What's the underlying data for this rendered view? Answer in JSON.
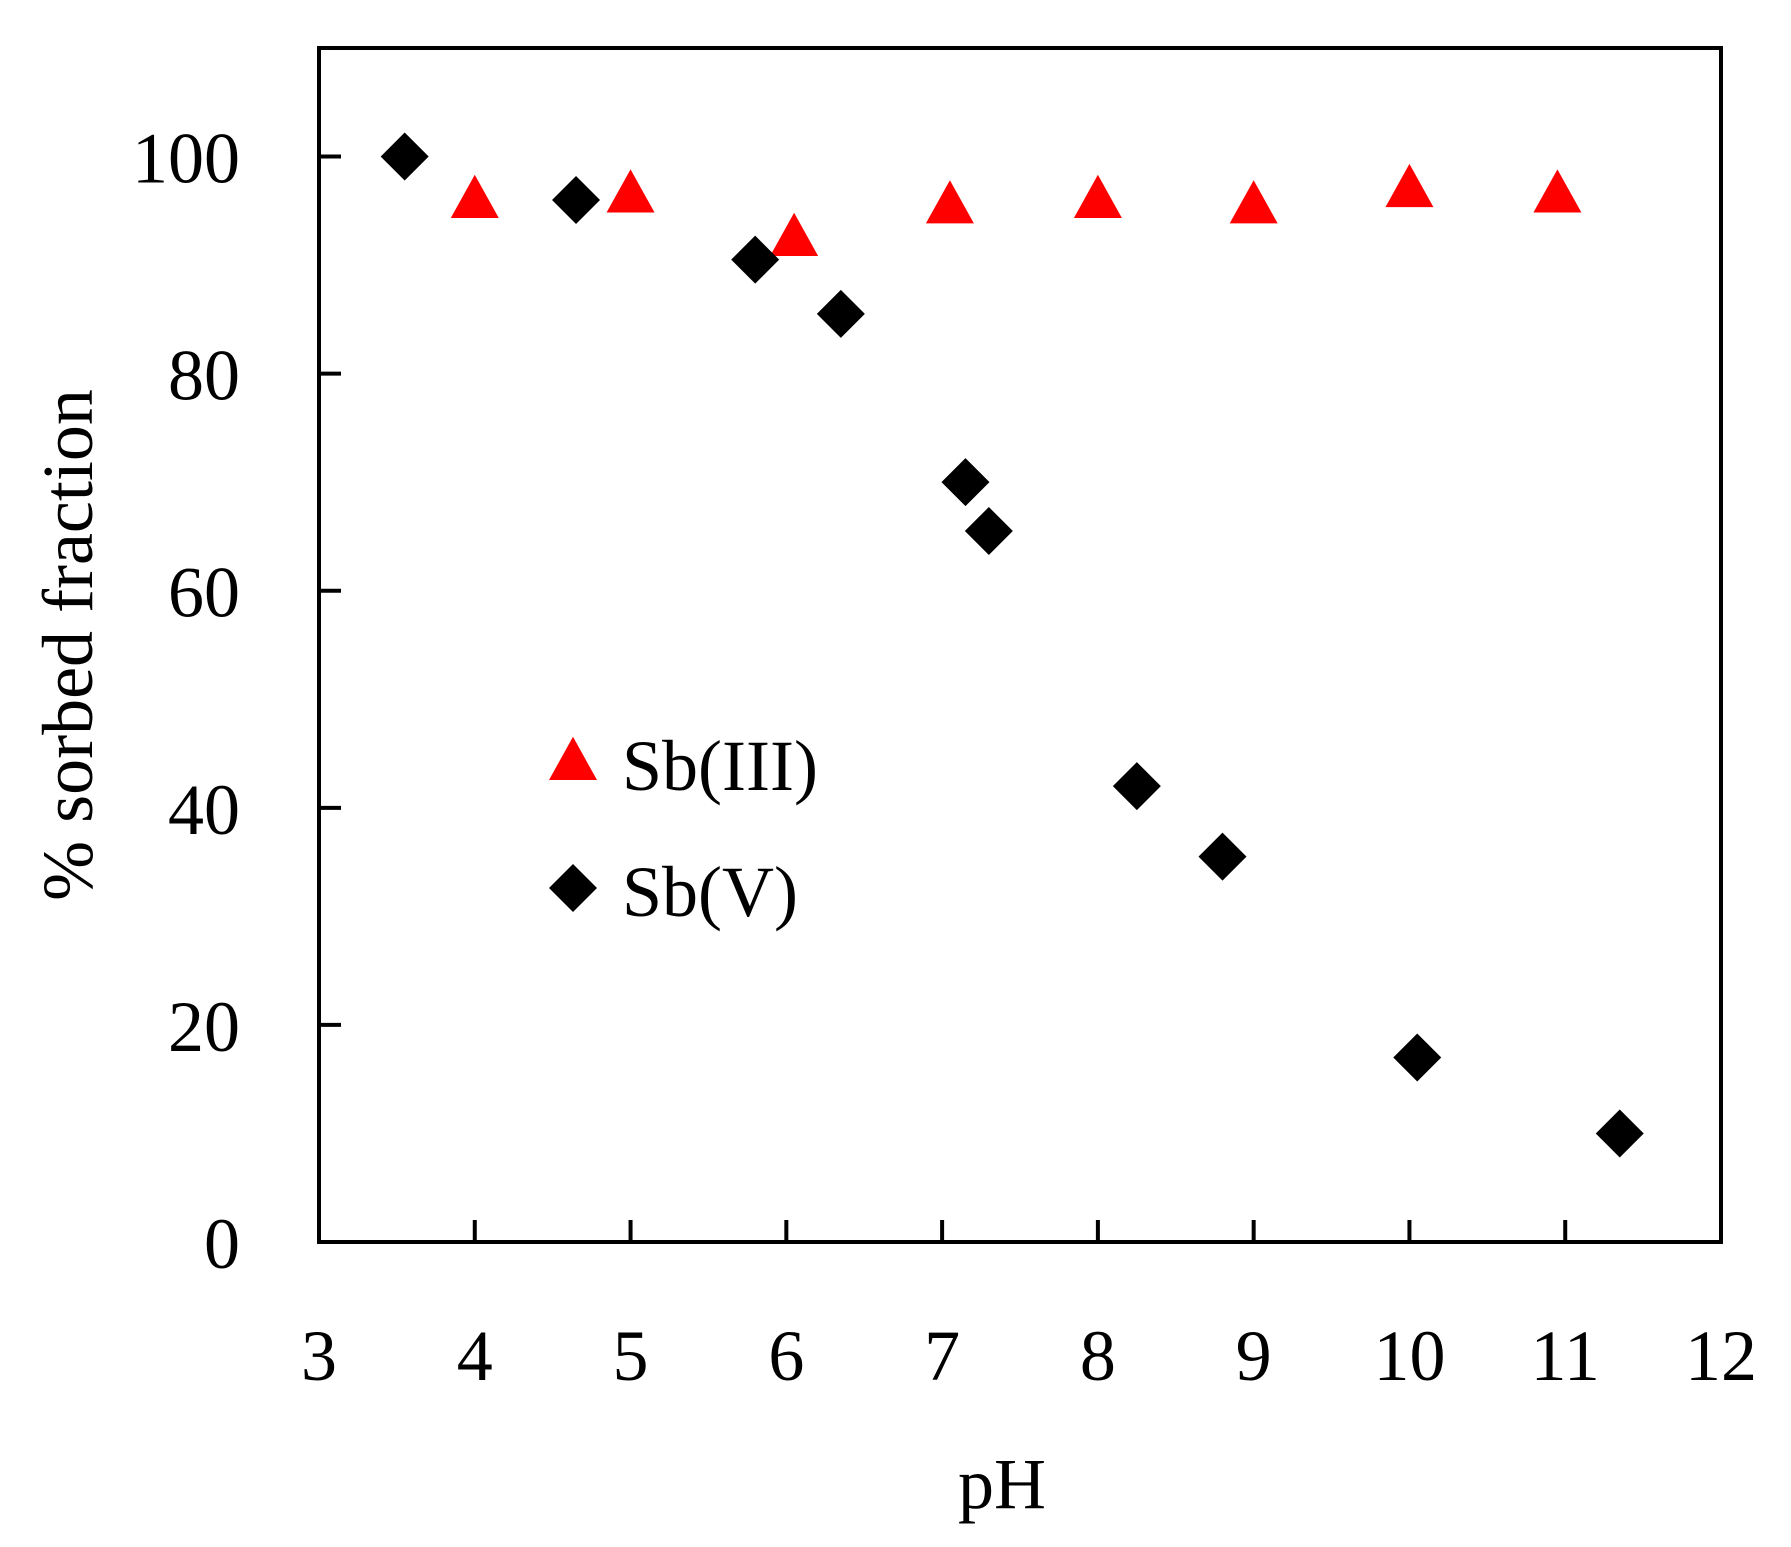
{
  "chart_data": {
    "type": "scatter",
    "title": "",
    "xlabel": "pH",
    "ylabel": "% sorbed fraction",
    "xlim": [
      3,
      12
    ],
    "ylim": [
      0,
      110
    ],
    "xticks": [
      "3",
      "4",
      "5",
      "6",
      "7",
      "8",
      "9",
      "10",
      "11",
      "12"
    ],
    "yticks": [
      "0",
      "20",
      "40",
      "60",
      "80",
      "100"
    ],
    "grid": false,
    "legend_position": "center-left",
    "series": [
      {
        "name": "Sb(III)",
        "marker": "triangle",
        "color": "#ff0000",
        "points": [
          {
            "x": 4.0,
            "y": 96
          },
          {
            "x": 5.0,
            "y": 96.5
          },
          {
            "x": 6.05,
            "y": 92.5
          },
          {
            "x": 7.05,
            "y": 95.5
          },
          {
            "x": 8.0,
            "y": 96
          },
          {
            "x": 9.0,
            "y": 95.5
          },
          {
            "x": 10.0,
            "y": 97
          },
          {
            "x": 10.95,
            "y": 96.5
          }
        ]
      },
      {
        "name": "Sb(V)",
        "marker": "diamond",
        "color": "#000000",
        "points": [
          {
            "x": 3.55,
            "y": 100
          },
          {
            "x": 4.65,
            "y": 96
          },
          {
            "x": 5.8,
            "y": 90.5
          },
          {
            "x": 6.35,
            "y": 85.5
          },
          {
            "x": 7.15,
            "y": 70
          },
          {
            "x": 7.3,
            "y": 65.5
          },
          {
            "x": 8.25,
            "y": 42
          },
          {
            "x": 8.8,
            "y": 35.5
          },
          {
            "x": 10.05,
            "y": 17
          },
          {
            "x": 11.35,
            "y": 10
          }
        ]
      }
    ]
  }
}
